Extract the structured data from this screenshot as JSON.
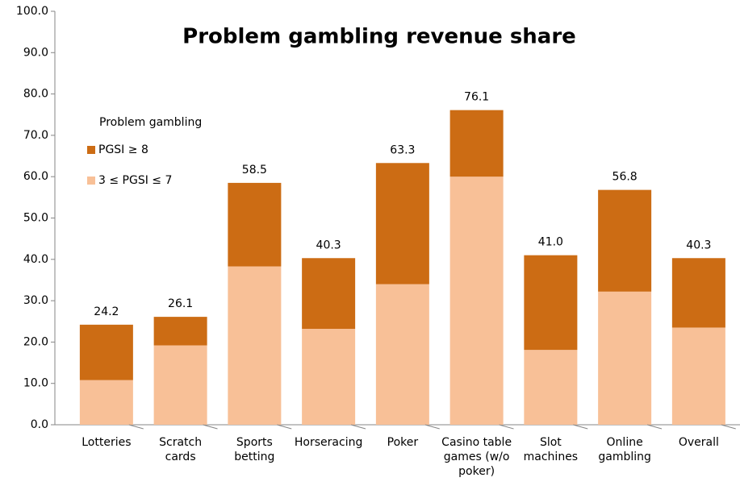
{
  "chart_data": {
    "type": "stacked_bar",
    "title": "Problem gambling revenue share",
    "legend_title": "Problem gambling",
    "categories": [
      "Lotteries",
      "Scratch cards",
      "Sports betting",
      "Horseracing",
      "Poker",
      "Casino table games (w/o poker)",
      "Slot machines",
      "Online gambling",
      "Overall"
    ],
    "series": [
      {
        "name": "3 ≤ PGSI ≤ 7",
        "color": "#f8c097",
        "values": [
          10.8,
          19.2,
          38.3,
          23.2,
          34.0,
          60.0,
          18.1,
          32.2,
          23.5
        ]
      },
      {
        "name": "PGSI ≥ 8",
        "color": "#cc6c14",
        "values": [
          13.4,
          6.9,
          20.2,
          17.1,
          29.3,
          16.1,
          22.9,
          24.6,
          16.8
        ]
      }
    ],
    "total_labels": [
      "24.2",
      "26.1",
      "58.5",
      "40.3",
      "63.3",
      "76.1",
      "41.0",
      "56.8",
      "40.3"
    ],
    "ylim": [
      0,
      100
    ],
    "yticks": [
      {
        "value": 0,
        "label": "0.0"
      },
      {
        "value": 10,
        "label": "10.0"
      },
      {
        "value": 20,
        "label": "20.0"
      },
      {
        "value": 30,
        "label": "30.0"
      },
      {
        "value": 40,
        "label": "40.0"
      },
      {
        "value": 50,
        "label": "50.0"
      },
      {
        "value": 60,
        "label": "60.0"
      },
      {
        "value": 70,
        "label": "70.0"
      },
      {
        "value": 80,
        "label": "80.0"
      },
      {
        "value": 90,
        "label": "90.0"
      },
      {
        "value": 100,
        "label": "100.0"
      }
    ],
    "grid": false
  }
}
